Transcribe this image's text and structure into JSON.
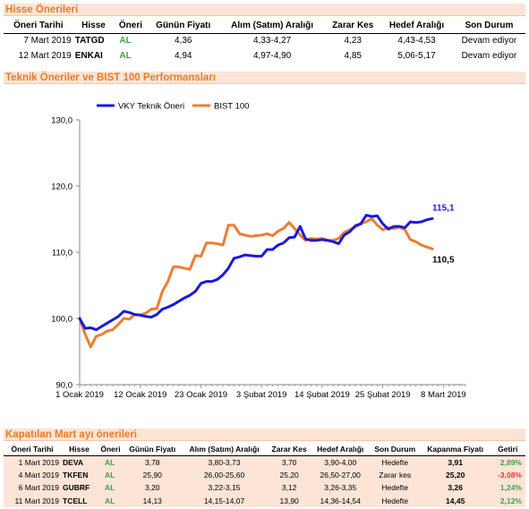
{
  "sections": {
    "top_title": "Hisse Önerileri",
    "chart_title": "Teknik Öneriler ve BIST 100 Performansları",
    "bottom_title": "Kapatılan Mart ayı önerileri"
  },
  "top_table": {
    "headers": [
      "Öneri Tarihi",
      "Hisse",
      "Öneri",
      "Günün Fiyatı",
      "Alım (Satım) Aralığı",
      "Zarar Kes",
      "Hedef Aralığı",
      "Son Durum"
    ],
    "rows": [
      [
        "7 Mart 2019",
        "TATGD",
        "AL",
        "4,36",
        "4,33-4,27",
        "4,23",
        "4,43-4,53",
        "Devam ediyor"
      ],
      [
        "12 Mart 2019",
        "ENKAI",
        "AL",
        "4,94",
        "4,97-4,90",
        "4,85",
        "5,06-5,17",
        "Devam ediyor"
      ]
    ]
  },
  "bottom_table": {
    "headers": [
      "Öneri Tarihi",
      "Hisse",
      "Öneri",
      "Günün Fiyatı",
      "Alım (Satım) Aralığı",
      "Zarar Kes",
      "Hedef Aralığı",
      "Son Durum",
      "Kapanma Fiyatı",
      "Getiri"
    ],
    "rows": [
      [
        "1 Mart 2019",
        "DEVA",
        "AL",
        "3,78",
        "3,80-3,73",
        "3,70",
        "3,90-4,00",
        "Hedefte",
        "3,91",
        "2,89%"
      ],
      [
        "4 Mart 2019",
        "TKFEN",
        "AL",
        "25,90",
        "26,00-25,60",
        "25,20",
        "26,50-27,00",
        "Zarar kes",
        "25,20",
        "-3,08%"
      ],
      [
        "6 Mart 2019",
        "GUBRF",
        "AL",
        "3,20",
        "3,22-3,15",
        "3,12",
        "3,26-3,35",
        "Hedefte",
        "3,26",
        "1,24%"
      ],
      [
        "11 Mart 2019",
        "TCELL",
        "AL",
        "14,13",
        "14,15-14,07",
        "13,90",
        "14,36-14,54",
        "Hedefte",
        "14,45",
        "2,12%"
      ]
    ]
  },
  "colors": {
    "accent_orange": "#e97c27",
    "header_bg": "#fce4d6",
    "vky_line": "#1a1adb",
    "bist_line": "#ed7d31",
    "positive": "#3da447",
    "negative": "#e53935"
  },
  "chart_data": {
    "type": "line",
    "title": "",
    "xlabel": "",
    "ylabel": "",
    "ylim": [
      90,
      130
    ],
    "yticks": [
      "90,0",
      "100,0",
      "110,0",
      "120,0",
      "130,0"
    ],
    "ytick_values": [
      90,
      100,
      110,
      120,
      130
    ],
    "xticks": [
      "1 Ocak 2019",
      "12 Ocak 2019",
      "23 Ocak 2019",
      "3 Şubat 2019",
      "14 Şubat 2019",
      "25 Şubat 2019",
      "8 Mart 2019"
    ],
    "xtick_days": [
      0,
      11,
      22,
      33,
      44,
      55,
      66
    ],
    "xmax_day": 70,
    "legend_position": "top-left",
    "grid": false,
    "series": [
      {
        "name": "VKY Teknik Öneri",
        "color": "#1a1adb",
        "end_label": "115,1",
        "points": [
          [
            0,
            100
          ],
          [
            1,
            98.5
          ],
          [
            2,
            98.6
          ],
          [
            3,
            98.3
          ],
          [
            4,
            98.8
          ],
          [
            5,
            99.3
          ],
          [
            6,
            99.8
          ],
          [
            7,
            100.3
          ],
          [
            8,
            101.1
          ],
          [
            9,
            100.9
          ],
          [
            10,
            100.6
          ],
          [
            11,
            100.5
          ],
          [
            12,
            100.3
          ],
          [
            13,
            100.2
          ],
          [
            14,
            100.6
          ],
          [
            15,
            101.4
          ],
          [
            16,
            101.7
          ],
          [
            17,
            102.1
          ],
          [
            18,
            102.6
          ],
          [
            19,
            103.1
          ],
          [
            20,
            103.5
          ],
          [
            21,
            104.1
          ],
          [
            22,
            105.3
          ],
          [
            23,
            105.6
          ],
          [
            24,
            105.6
          ],
          [
            25,
            105.9
          ],
          [
            26,
            106.6
          ],
          [
            27,
            107.6
          ],
          [
            28,
            109.1
          ],
          [
            29,
            109.3
          ],
          [
            30,
            109.6
          ],
          [
            31,
            109.5
          ],
          [
            32,
            109.4
          ],
          [
            33,
            109.4
          ],
          [
            34,
            110.4
          ],
          [
            35,
            110.4
          ],
          [
            36,
            111.1
          ],
          [
            37,
            111.4
          ],
          [
            38,
            112.2
          ],
          [
            39,
            112.3
          ],
          [
            40,
            113.9
          ],
          [
            41,
            112.0
          ],
          [
            42,
            111.8
          ],
          [
            43,
            111.8
          ],
          [
            44,
            111.9
          ],
          [
            45,
            111.8
          ],
          [
            46,
            111.6
          ],
          [
            47,
            111.3
          ],
          [
            48,
            112.6
          ],
          [
            49,
            113.1
          ],
          [
            50,
            114.0
          ],
          [
            51,
            114.3
          ],
          [
            52,
            115.6
          ],
          [
            53,
            115.4
          ],
          [
            54,
            115.5
          ],
          [
            55,
            114.3
          ],
          [
            56,
            113.5
          ],
          [
            57,
            113.9
          ],
          [
            58,
            113.9
          ],
          [
            59,
            113.7
          ],
          [
            60,
            114.6
          ],
          [
            61,
            114.5
          ],
          [
            62,
            114.6
          ],
          [
            63,
            114.9
          ],
          [
            64,
            115.1
          ]
        ]
      },
      {
        "name": "BIST 100",
        "color": "#ed7d31",
        "end_label": "110,5",
        "points": [
          [
            0,
            100
          ],
          [
            1,
            97.6
          ],
          [
            2,
            95.7
          ],
          [
            3,
            97.3
          ],
          [
            4,
            97.6
          ],
          [
            5,
            98.1
          ],
          [
            6,
            98.3
          ],
          [
            7,
            99.1
          ],
          [
            8,
            100.0
          ],
          [
            9,
            99.9
          ],
          [
            10,
            100.6
          ],
          [
            11,
            100.5
          ],
          [
            12,
            100.8
          ],
          [
            13,
            101.4
          ],
          [
            14,
            101.5
          ],
          [
            15,
            104.1
          ],
          [
            16,
            105.6
          ],
          [
            17,
            107.8
          ],
          [
            18,
            107.8
          ],
          [
            19,
            107.6
          ],
          [
            20,
            107.4
          ],
          [
            21,
            109.5
          ],
          [
            22,
            109.4
          ],
          [
            23,
            111.4
          ],
          [
            24,
            111.4
          ],
          [
            25,
            111.3
          ],
          [
            26,
            111.1
          ],
          [
            27,
            114.1
          ],
          [
            28,
            114.1
          ],
          [
            29,
            112.8
          ],
          [
            30,
            112.6
          ],
          [
            31,
            112.4
          ],
          [
            32,
            112.5
          ],
          [
            33,
            112.6
          ],
          [
            34,
            112.8
          ],
          [
            35,
            112.5
          ],
          [
            36,
            113.2
          ],
          [
            37,
            113.6
          ],
          [
            38,
            114.5
          ],
          [
            39,
            113.6
          ],
          [
            40,
            112.6
          ],
          [
            41,
            111.8
          ],
          [
            42,
            112.1
          ],
          [
            43,
            112.0
          ],
          [
            44,
            112.1
          ],
          [
            45,
            111.8
          ],
          [
            46,
            111.8
          ],
          [
            47,
            112.1
          ],
          [
            48,
            113.0
          ],
          [
            49,
            113.4
          ],
          [
            50,
            113.8
          ],
          [
            51,
            114.3
          ],
          [
            52,
            114.6
          ],
          [
            53,
            115.1
          ],
          [
            54,
            114.1
          ],
          [
            55,
            113.4
          ],
          [
            56,
            113.7
          ],
          [
            57,
            113.6
          ],
          [
            58,
            113.8
          ],
          [
            59,
            113.4
          ],
          [
            60,
            111.9
          ],
          [
            61,
            111.6
          ],
          [
            62,
            111.1
          ],
          [
            63,
            110.8
          ],
          [
            64,
            110.5
          ]
        ]
      }
    ]
  }
}
